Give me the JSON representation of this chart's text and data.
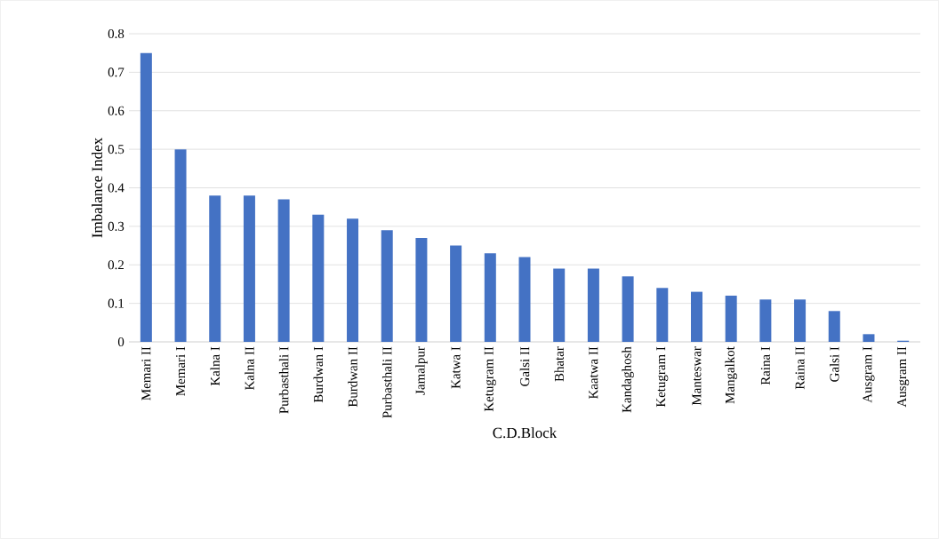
{
  "chart_data": {
    "type": "bar",
    "xlabel": "C.D.Block",
    "ylabel": "Imbalance Index",
    "categories": [
      "Memari II",
      "Memari I",
      "Kalna I",
      "Kalna II",
      "Purbasthali I",
      "Burdwan I",
      "Burdwan II",
      "Purbasthali II",
      "Jamalpur",
      "Katwa I",
      "Ketugram II",
      "Galsi II",
      "Bhatar",
      "Kaatwa II",
      "Kandaghosh",
      "Ketugram I",
      "Manteswar",
      "Mangalkot",
      "Raina I",
      "Raina II",
      "Galsi I",
      "Ausgram I",
      "Ausgram II"
    ],
    "values": [
      0.75,
      0.5,
      0.38,
      0.38,
      0.37,
      0.33,
      0.32,
      0.29,
      0.27,
      0.25,
      0.23,
      0.22,
      0.19,
      0.19,
      0.17,
      0.14,
      0.13,
      0.12,
      0.11,
      0.11,
      0.08,
      0.02,
      0.003
    ],
    "color": "#4472c4",
    "ylim": [
      0,
      0.8
    ],
    "yticks": [
      0,
      0.1,
      0.2,
      0.3,
      0.4,
      0.5,
      0.6,
      0.7,
      0.8
    ],
    "grid": "y"
  }
}
